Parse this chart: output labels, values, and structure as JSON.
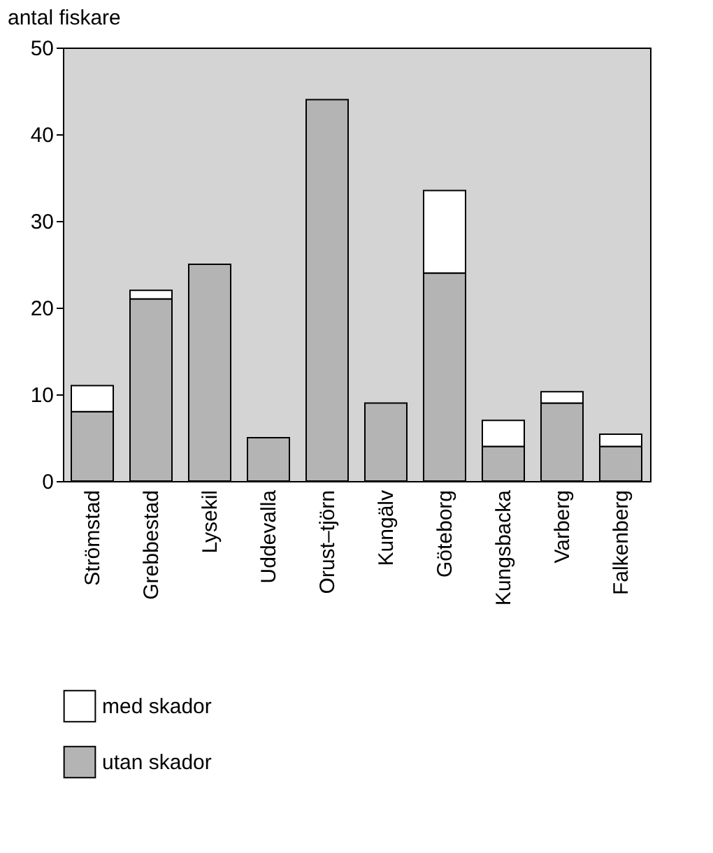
{
  "chart_data": {
    "type": "bar",
    "ylabel": "antal fiskare",
    "stacked": true,
    "categories": [
      "Strömstad",
      "Grebbestad",
      "Lysekil",
      "Uddevalla",
      "Orust–tjörn",
      "Kungälv",
      "Göteborg",
      "Kungsbacka",
      "Varberg",
      "Falkenberg"
    ],
    "series": [
      {
        "name": "utan skador",
        "color": "#b4b4b4",
        "values": [
          8,
          21,
          25,
          5,
          44,
          9,
          24,
          4,
          9,
          4
        ]
      },
      {
        "name": "med skador",
        "color": "#ffffff",
        "values": [
          3,
          1,
          null,
          null,
          null,
          null,
          9.5,
          3,
          1.3,
          1.4
        ]
      }
    ],
    "ylim": [
      0,
      50
    ],
    "yticks": [
      0,
      10,
      20,
      30,
      40,
      50
    ],
    "grid": false,
    "legend": "bottom"
  }
}
